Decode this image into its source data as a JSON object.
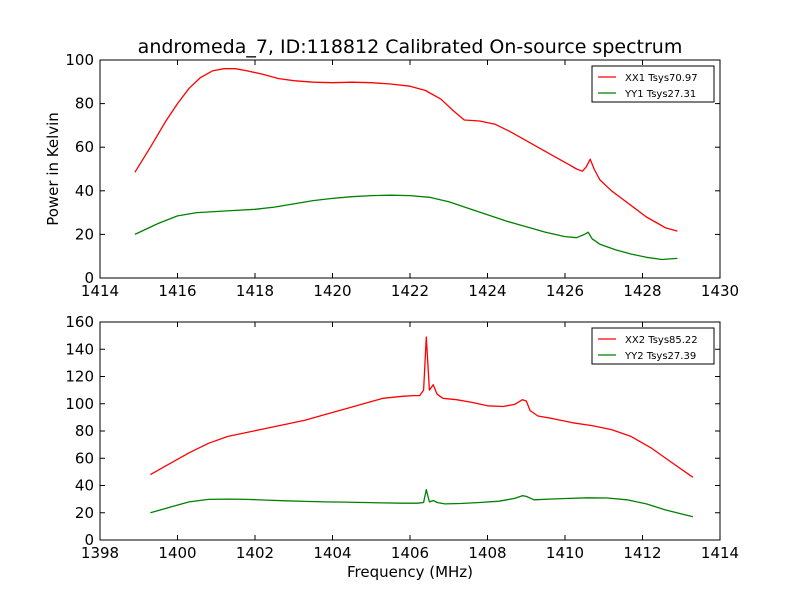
{
  "chart_data": [
    {
      "type": "line",
      "title": "andromeda_7, ID:118812 Calibrated On-source spectrum",
      "xlabel": "",
      "ylabel": "Power in Kelvin",
      "xlim": [
        1414,
        1430
      ],
      "ylim": [
        0,
        100
      ],
      "xticks": [
        1414,
        1416,
        1418,
        1420,
        1422,
        1424,
        1426,
        1428,
        1430
      ],
      "yticks": [
        0,
        20,
        40,
        60,
        80,
        100
      ],
      "legend": "top-right",
      "grid": false,
      "series": [
        {
          "name": "XX1 Tsys70.97",
          "color": "#ff0000",
          "x": [
            1414.9,
            1415.3,
            1415.7,
            1416.0,
            1416.3,
            1416.6,
            1416.9,
            1417.2,
            1417.5,
            1417.8,
            1418.2,
            1418.6,
            1419.0,
            1419.5,
            1420.0,
            1420.5,
            1421.0,
            1421.5,
            1422.0,
            1422.4,
            1422.8,
            1423.1,
            1423.4,
            1423.8,
            1424.2,
            1424.6,
            1425.0,
            1425.4,
            1425.8,
            1426.1,
            1426.3,
            1426.45,
            1426.55,
            1426.65,
            1426.75,
            1426.9,
            1427.2,
            1427.5,
            1427.8,
            1428.1,
            1428.4,
            1428.6,
            1428.9
          ],
          "y": [
            48.5,
            60,
            72,
            80,
            87,
            92,
            95,
            96,
            96,
            95,
            93.5,
            91.5,
            90.5,
            89.8,
            89.6,
            89.8,
            89.6,
            89,
            88,
            86,
            82,
            77,
            72.5,
            72,
            70.5,
            67,
            63,
            59,
            55,
            52,
            50,
            49,
            51,
            54.5,
            50,
            45,
            40,
            36,
            32,
            28,
            25,
            23,
            21.5
          ]
        },
        {
          "name": "YY1 Tsys27.31",
          "color": "#008000",
          "x": [
            1414.9,
            1415.5,
            1416.0,
            1416.5,
            1417.0,
            1417.5,
            1418.0,
            1418.5,
            1419.0,
            1419.5,
            1420.0,
            1420.5,
            1421.0,
            1421.5,
            1422.0,
            1422.5,
            1423.0,
            1423.5,
            1424.0,
            1424.5,
            1425.0,
            1425.5,
            1426.0,
            1426.3,
            1426.5,
            1426.6,
            1426.7,
            1426.9,
            1427.3,
            1427.7,
            1428.1,
            1428.5,
            1428.9
          ],
          "y": [
            20,
            25,
            28.5,
            30,
            30.5,
            31,
            31.5,
            32.5,
            34,
            35.5,
            36.5,
            37.3,
            37.8,
            38,
            37.8,
            37,
            35,
            32,
            29,
            26,
            23.5,
            21,
            19,
            18.5,
            20,
            21,
            18,
            15.5,
            13,
            11,
            9.5,
            8.5,
            9
          ]
        }
      ]
    },
    {
      "type": "line",
      "title": "",
      "xlabel": "Frequency (MHz)",
      "ylabel": "",
      "xlim": [
        1398,
        1414
      ],
      "ylim": [
        0,
        160
      ],
      "xticks": [
        1398,
        1400,
        1402,
        1404,
        1406,
        1408,
        1410,
        1412,
        1414
      ],
      "yticks": [
        0,
        20,
        40,
        60,
        80,
        100,
        120,
        140,
        160
      ],
      "legend": "top-right",
      "grid": false,
      "series": [
        {
          "name": "XX2 Tsys85.22",
          "color": "#ff0000",
          "x": [
            1399.3,
            1399.8,
            1400.3,
            1400.8,
            1401.3,
            1401.8,
            1402.3,
            1402.8,
            1403.3,
            1403.8,
            1404.3,
            1404.8,
            1405.3,
            1405.8,
            1406.1,
            1406.25,
            1406.35,
            1406.42,
            1406.5,
            1406.6,
            1406.7,
            1406.85,
            1407.2,
            1407.6,
            1408.0,
            1408.4,
            1408.7,
            1408.9,
            1409.0,
            1409.1,
            1409.3,
            1409.7,
            1410.2,
            1410.7,
            1411.2,
            1411.7,
            1412.2,
            1412.7,
            1413.3
          ],
          "y": [
            48,
            56,
            64,
            71,
            76,
            79,
            82,
            85,
            88,
            92,
            96,
            100,
            104,
            105.5,
            106,
            106,
            110,
            149,
            110,
            114,
            107,
            104,
            103,
            101,
            98.5,
            98,
            99.5,
            103,
            102,
            95,
            91,
            89,
            86,
            84,
            81,
            76,
            68,
            58,
            46
          ]
        },
        {
          "name": "YY2 Tsys27.39",
          "color": "#008000",
          "x": [
            1399.3,
            1399.8,
            1400.3,
            1400.8,
            1401.3,
            1401.8,
            1402.3,
            1402.8,
            1403.3,
            1403.8,
            1404.3,
            1404.8,
            1405.3,
            1405.8,
            1406.2,
            1406.35,
            1406.42,
            1406.5,
            1406.6,
            1406.7,
            1406.9,
            1407.3,
            1407.8,
            1408.3,
            1408.7,
            1408.9,
            1409.0,
            1409.2,
            1409.6,
            1410.1,
            1410.6,
            1411.1,
            1411.6,
            1412.1,
            1412.6,
            1413.3
          ],
          "y": [
            20,
            24,
            28,
            29.8,
            30,
            29.8,
            29.3,
            28.8,
            28.3,
            28,
            27.8,
            27.5,
            27.2,
            27,
            27,
            27.5,
            37,
            28,
            29,
            27.5,
            26.5,
            26.8,
            27.5,
            28.5,
            30.5,
            32.5,
            32,
            29.5,
            30,
            30.5,
            31,
            30.8,
            29.5,
            26.5,
            22,
            17
          ]
        }
      ]
    }
  ]
}
